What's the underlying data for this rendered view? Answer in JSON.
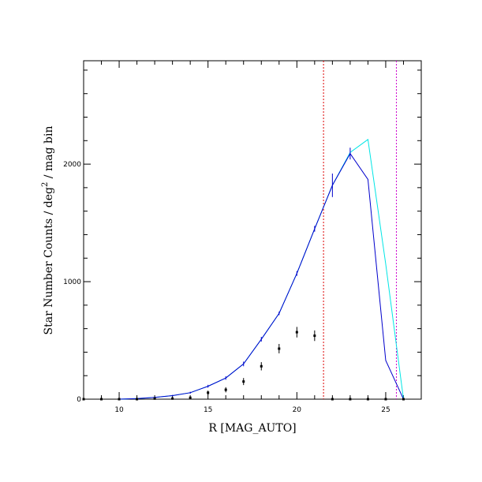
{
  "chart_data": {
    "type": "line",
    "xlabel": "R [MAG_AUTO]",
    "ylabel_main": "Star Number Counts / deg",
    "ylabel_sup": "2",
    "ylabel_tail": " / mag bin",
    "xlim": [
      8,
      27
    ],
    "ylim": [
      0,
      2880
    ],
    "x_ticks": [
      10,
      15,
      20,
      25
    ],
    "y_ticks": [
      0,
      1000,
      2000
    ],
    "grid": false,
    "series": [
      {
        "color": "#00e5e5",
        "x": [
          10,
          11,
          12,
          13,
          14,
          15,
          16,
          17,
          18,
          19,
          20,
          21,
          22,
          23,
          24,
          25,
          26
        ],
        "y": [
          0,
          5,
          15,
          30,
          55,
          110,
          180,
          300,
          510,
          730,
          1070,
          1450,
          1820,
          2100,
          2210,
          1150,
          0
        ]
      },
      {
        "color": "#0000cc",
        "x": [
          10,
          11,
          12,
          13,
          14,
          15,
          16,
          17,
          18,
          19,
          20,
          21,
          22,
          23,
          24,
          25,
          26
        ],
        "y": [
          0,
          5,
          15,
          30,
          55,
          110,
          180,
          300,
          510,
          730,
          1070,
          1450,
          1820,
          2090,
          1870,
          330,
          0
        ],
        "errors": [
          0,
          2,
          4,
          6,
          8,
          12,
          15,
          20,
          20,
          15,
          20,
          25,
          100,
          50,
          0,
          0,
          0
        ]
      },
      {
        "color": "#000000",
        "style": "points",
        "x": [
          8,
          9,
          10,
          11,
          12,
          13,
          14,
          15,
          16,
          17,
          18,
          19,
          20,
          21,
          22,
          23,
          24,
          25,
          26
        ],
        "y": [
          0,
          0,
          0,
          0,
          5,
          5,
          12,
          55,
          80,
          150,
          280,
          430,
          570,
          540,
          0,
          0,
          0,
          0,
          0
        ],
        "errors": [
          0,
          0,
          0,
          0,
          3,
          3,
          6,
          18,
          22,
          30,
          35,
          40,
          45,
          45,
          0,
          0,
          0,
          0,
          0
        ]
      }
    ],
    "vlines": [
      {
        "x": 21.5,
        "color": "#dd0000"
      },
      {
        "x": 25.6,
        "color": "#cc00cc"
      }
    ]
  }
}
